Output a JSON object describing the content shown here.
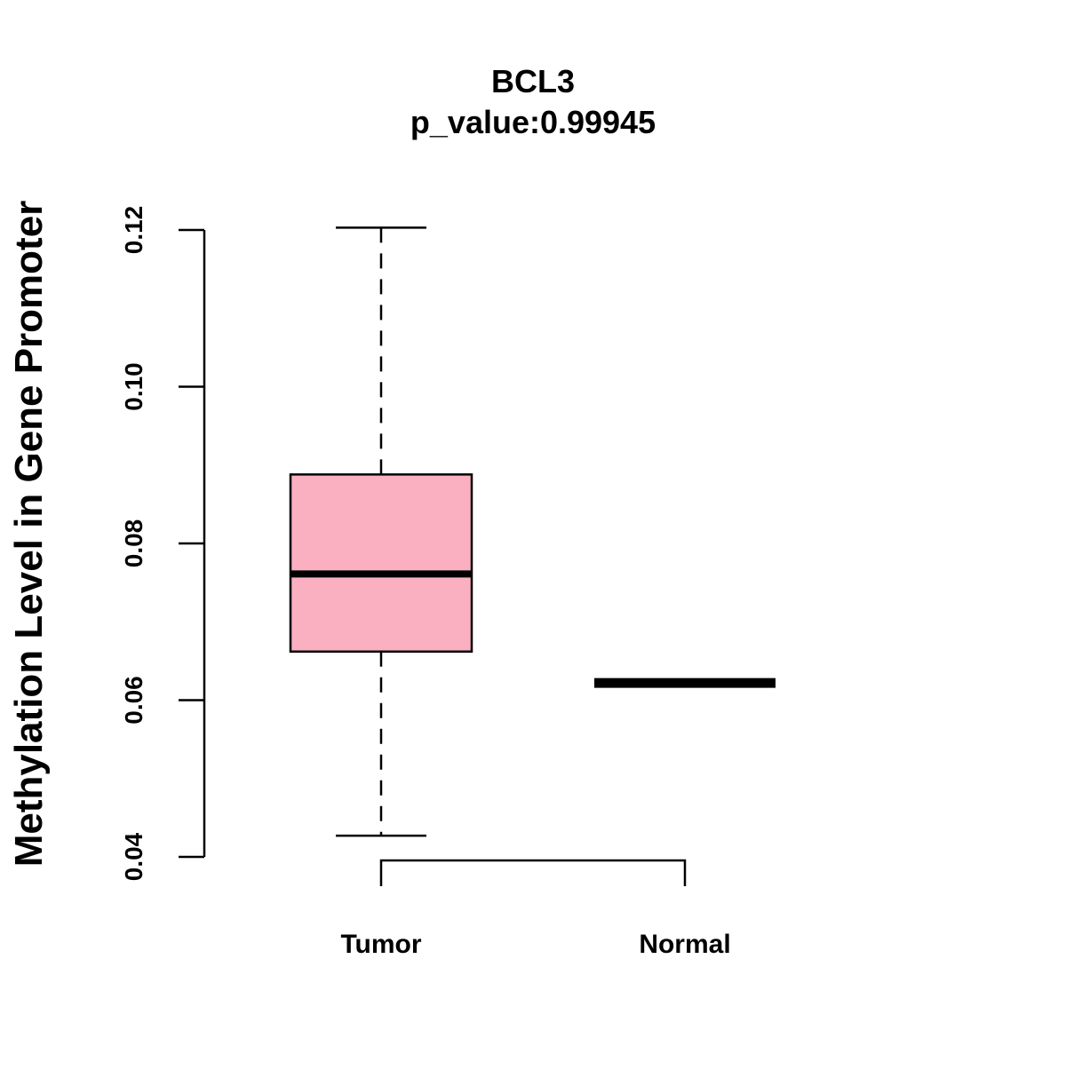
{
  "chart_data": {
    "type": "box",
    "title": "BCL3",
    "subtitle": "p_value:0.99945",
    "ylabel": "Methylation Level in Gene Promoter",
    "xlabel": "",
    "ylim": [
      0.04,
      0.12
    ],
    "yticks": [
      0.04,
      0.06,
      0.08,
      0.1,
      0.12
    ],
    "ytick_labels": [
      "0.04",
      "0.06",
      "0.08",
      "0.10",
      "0.12"
    ],
    "categories": [
      "Tumor",
      "Normal"
    ],
    "boxes": [
      {
        "name": "Tumor",
        "whisker_low": 0.0427,
        "q1": 0.0662,
        "median": 0.0761,
        "q3": 0.0888,
        "whisker_high": 0.1203,
        "fill": "#FBB0C2"
      },
      {
        "name": "Normal",
        "whisker_low": 0.0622,
        "q1": 0.0622,
        "median": 0.0622,
        "q3": 0.0622,
        "whisker_high": 0.0622,
        "fill": "#FBB0C2"
      }
    ],
    "grid": false,
    "legend": "none",
    "significance_bracket": {
      "from": "Tumor",
      "to": "Normal",
      "label": ""
    }
  }
}
